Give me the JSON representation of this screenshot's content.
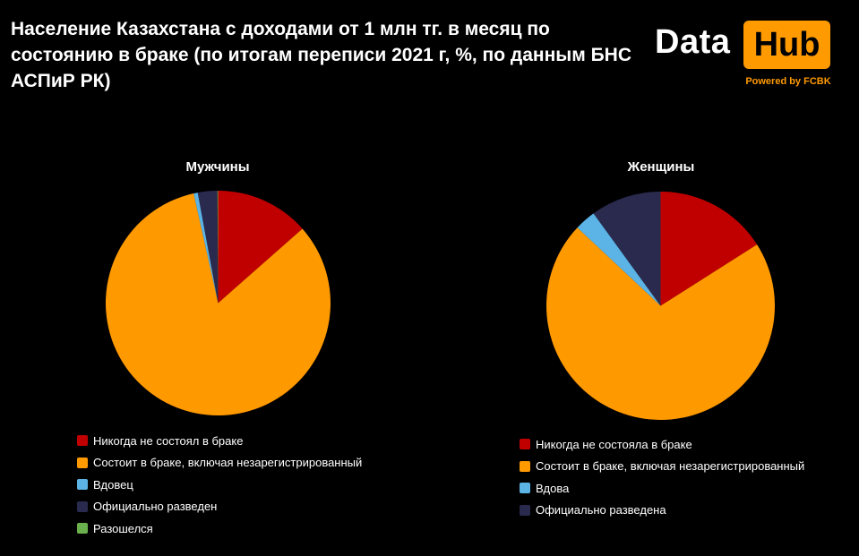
{
  "title": "Население Казахстана с доходами от 1 млн тг. в месяц по состоянию в браке (по итогам переписи 2021 г, %, по данным БНС АСПиР РК)",
  "logo": {
    "word1": "Data",
    "word2": "Hub",
    "tagline": "Powered by FCBK",
    "accent": "#ff9a00"
  },
  "chart_data": [
    {
      "type": "pie",
      "title": "Мужчины",
      "categories": [
        "Никогда не состоял в браке",
        "Состоит в браке, включая незарегистрированный",
        "Вдовец",
        "Официально разведен",
        "Разошелся"
      ],
      "values": [
        13.5,
        83,
        0.6,
        2.8,
        0.1
      ],
      "colors": [
        "#c00000",
        "#ff9900",
        "#5bb4e5",
        "#2a2a4e",
        "#6ab04c"
      ],
      "legend_placement": "bottom"
    },
    {
      "type": "pie",
      "title": "Женщины",
      "categories": [
        "Никогда не состояла в браке",
        "Состоит в браке, включая незарегистрированный",
        "Вдова",
        "Официально разведена"
      ],
      "values": [
        16,
        71,
        3,
        10
      ],
      "colors": [
        "#c00000",
        "#ff9900",
        "#5bb4e5",
        "#2a2a4e"
      ],
      "legend_placement": "bottom"
    }
  ]
}
